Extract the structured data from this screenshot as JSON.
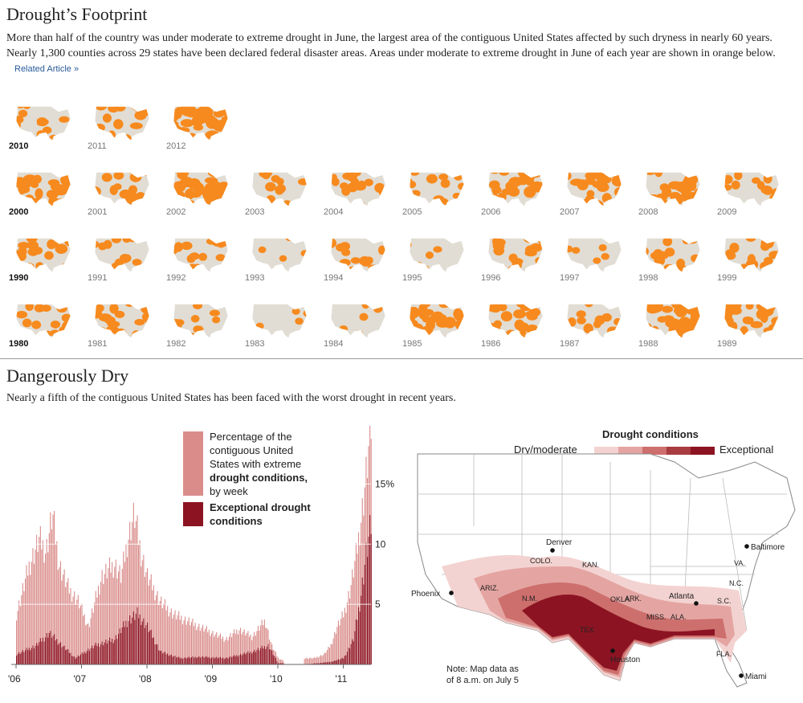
{
  "header": {
    "title": "Drought’s Footprint",
    "intro": "More than half of the country was under moderate to extreme drought in June, the largest area of the contiguous United States affected by such dryness in nearly 60 years. Nearly 1,300 counties across 29 states have been declared federal disaster areas. Areas under moderate to extreme drought in June of each year are shown in orange below.",
    "related_link": "Related Article »"
  },
  "small_multiples": {
    "land_color": "#e1ddd4",
    "drought_color": "#f78a1e",
    "rows": [
      {
        "years": [
          "2010",
          "2011",
          "2012"
        ],
        "coverage": [
          0.25,
          0.4,
          0.65
        ]
      },
      {
        "years": [
          "2000",
          "2001",
          "2002",
          "2003",
          "2004",
          "2005",
          "2006",
          "2007",
          "2008",
          "2009"
        ],
        "coverage": [
          0.55,
          0.5,
          0.6,
          0.3,
          0.35,
          0.3,
          0.5,
          0.55,
          0.5,
          0.35
        ]
      },
      {
        "years": [
          "1990",
          "1991",
          "1992",
          "1993",
          "1994",
          "1995",
          "1996",
          "1997",
          "1998",
          "1999"
        ],
        "coverage": [
          0.4,
          0.3,
          0.35,
          0.05,
          0.35,
          0.1,
          0.4,
          0.08,
          0.35,
          0.4
        ]
      },
      {
        "years": [
          "1980",
          "1981",
          "1982",
          "1983",
          "1984",
          "1985",
          "1986",
          "1987",
          "1988",
          "1989"
        ],
        "coverage": [
          0.3,
          0.45,
          0.25,
          0.08,
          0.15,
          0.55,
          0.45,
          0.35,
          0.65,
          0.5
        ]
      }
    ],
    "bold_years": [
      "2010",
      "2000",
      "1990",
      "1980"
    ]
  },
  "section2": {
    "title": "Dangerously Dry",
    "subtitle": "Nearly a fifth of the contiguous United States has been faced with the worst drought in recent years."
  },
  "chart_data": [
    {
      "type": "bar",
      "title": "",
      "xlabel": "",
      "ylabel": "",
      "ylim": [
        0,
        19.5
      ],
      "x_ticks": [
        "'06",
        "'07",
        "'08",
        "'09",
        "'10",
        "'11"
      ],
      "y_ticks": [
        "5",
        "10",
        "15%"
      ],
      "y_tick_values": [
        5,
        10,
        15
      ],
      "series": [
        {
          "name": "Percentage of the contiguous United States with extreme drought conditions, by week",
          "color": "#d98c8a",
          "anchors": [
            [
              2006.0,
              4
            ],
            [
              2006.2,
              8
            ],
            [
              2006.35,
              10
            ],
            [
              2006.45,
              9
            ],
            [
              2006.55,
              12
            ],
            [
              2006.65,
              8
            ],
            [
              2006.8,
              6
            ],
            [
              2006.95,
              5
            ],
            [
              2007.1,
              3
            ],
            [
              2007.3,
              7
            ],
            [
              2007.5,
              8
            ],
            [
              2007.6,
              7
            ],
            [
              2007.7,
              10
            ],
            [
              2007.8,
              12
            ],
            [
              2007.9,
              9
            ],
            [
              2008.0,
              7
            ],
            [
              2008.2,
              5
            ],
            [
              2008.4,
              4
            ],
            [
              2008.6,
              3.5
            ],
            [
              2008.8,
              3
            ],
            [
              2009.0,
              2.5
            ],
            [
              2009.2,
              2
            ],
            [
              2009.4,
              2.8
            ],
            [
              2009.6,
              2.2
            ],
            [
              2009.8,
              3.5
            ],
            [
              2009.9,
              1.5
            ],
            [
              2010.0,
              0.5
            ],
            [
              2010.08,
              0.3
            ]
          ],
          "anchors_2011": [
            [
              2010.4,
              0.5
            ],
            [
              2010.55,
              0.5
            ],
            [
              2010.7,
              0.8
            ],
            [
              2010.8,
              1.5
            ],
            [
              2010.9,
              3
            ],
            [
              2011.0,
              4
            ],
            [
              2011.1,
              6
            ],
            [
              2011.2,
              9
            ],
            [
              2011.3,
              13
            ],
            [
              2011.42,
              19
            ]
          ]
        },
        {
          "name": "Exceptional drought conditions",
          "color": "#8c1422",
          "anchors": [
            [
              2006.0,
              0.8
            ],
            [
              2006.3,
              1.5
            ],
            [
              2006.5,
              2.5
            ],
            [
              2006.7,
              1.5
            ],
            [
              2006.9,
              0.5
            ],
            [
              2007.2,
              1.5
            ],
            [
              2007.5,
              2
            ],
            [
              2007.7,
              3.5
            ],
            [
              2007.85,
              4
            ],
            [
              2008.0,
              3
            ],
            [
              2008.2,
              1
            ],
            [
              2008.5,
              0.5
            ],
            [
              2008.8,
              0.6
            ],
            [
              2009.2,
              0.5
            ],
            [
              2009.6,
              1
            ],
            [
              2009.85,
              1.5
            ],
            [
              2010.0,
              0.1
            ]
          ],
          "anchors_2011": [
            [
              2010.4,
              0.0
            ],
            [
              2010.8,
              0.2
            ],
            [
              2011.0,
              0.5
            ],
            [
              2011.15,
              2
            ],
            [
              2011.25,
              5
            ],
            [
              2011.35,
              9
            ],
            [
              2011.42,
              11
            ]
          ]
        }
      ]
    }
  ],
  "chart_legend": {
    "extreme_lines": [
      "Percentage of the",
      "contiguous United",
      "States with extreme",
      "drought conditions,",
      "by week"
    ],
    "exceptional_lines": [
      "Exceptional drought",
      "conditions"
    ]
  },
  "drought_map": {
    "legend_title": "Drought conditions",
    "legend_low": "Dry/moderate",
    "legend_high": "Exceptional",
    "scale_colors": [
      "#f3d3d1",
      "#e4a5a2",
      "#cd6f6d",
      "#a83c40",
      "#8c1422"
    ],
    "cities": [
      "Denver",
      "Phoenix",
      "Atlanta",
      "Baltimore",
      "Houston",
      "Miami"
    ],
    "states": [
      "COLO.",
      "KAN.",
      "ARIZ.",
      "N.M.",
      "OKLA.",
      "ARK.",
      "TEX.",
      "MISS.",
      "ALA.",
      "S.C.",
      "N.C.",
      "VA.",
      "FLA."
    ],
    "note": [
      "Note: Map data as",
      "of 8 a.m. on July 5"
    ]
  }
}
